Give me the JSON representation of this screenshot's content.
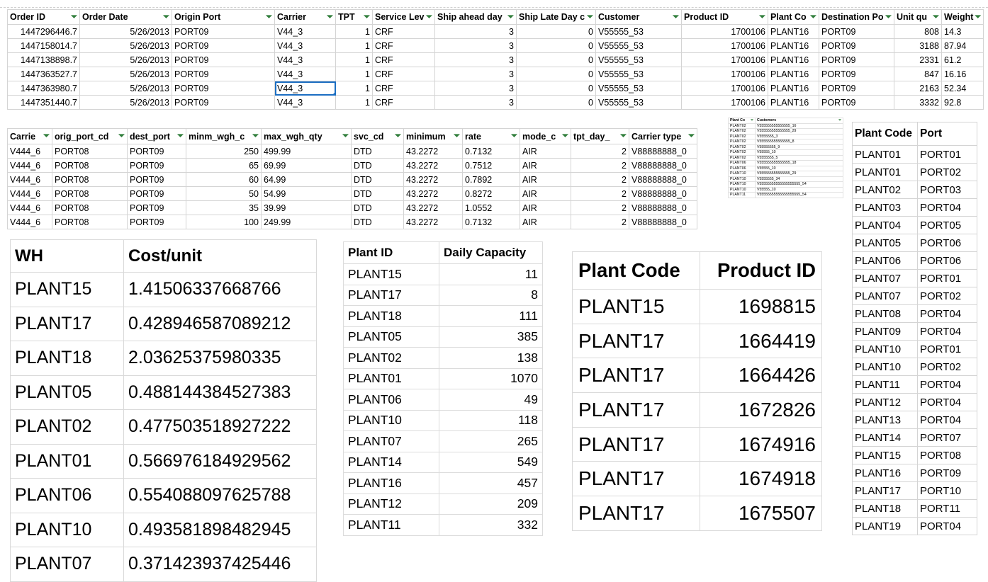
{
  "orders": {
    "columns": [
      "Order ID",
      "Order Date",
      "Origin Port",
      "Carrier",
      "TPT",
      "Service Lev",
      "Ship ahead day",
      "Ship Late Day c",
      "Customer",
      "Product ID",
      "Plant Co",
      "Destination Po",
      "Unit qu",
      "Weight"
    ],
    "rows": [
      [
        "1447296446.7",
        "5/26/2013",
        "PORT09",
        "V44_3",
        "1",
        "CRF",
        "3",
        "0",
        "V55555_53",
        "1700106",
        "PLANT16",
        "PORT09",
        "808",
        "14.3"
      ],
      [
        "1447158014.7",
        "5/26/2013",
        "PORT09",
        "V44_3",
        "1",
        "CRF",
        "3",
        "0",
        "V55555_53",
        "1700106",
        "PLANT16",
        "PORT09",
        "3188",
        "87.94"
      ],
      [
        "1447138898.7",
        "5/26/2013",
        "PORT09",
        "V44_3",
        "1",
        "CRF",
        "3",
        "0",
        "V55555_53",
        "1700106",
        "PLANT16",
        "PORT09",
        "2331",
        "61.2"
      ],
      [
        "1447363527.7",
        "5/26/2013",
        "PORT09",
        "V44_3",
        "1",
        "CRF",
        "3",
        "0",
        "V55555_53",
        "1700106",
        "PLANT16",
        "PORT09",
        "847",
        "16.16"
      ],
      [
        "1447363980.7",
        "5/26/2013",
        "PORT09",
        "V44_3",
        "1",
        "CRF",
        "3",
        "0",
        "V55555_53",
        "1700106",
        "PLANT16",
        "PORT09",
        "2163",
        "52.34"
      ],
      [
        "1447351440.7",
        "5/26/2013",
        "PORT09",
        "V44_3",
        "1",
        "CRF",
        "3",
        "0",
        "V55555_53",
        "1700106",
        "PLANT16",
        "PORT09",
        "3332",
        "92.8"
      ]
    ]
  },
  "freight": {
    "columns": [
      "Carrie",
      "orig_port_cd",
      "dest_port",
      "minm_wgh_c",
      "max_wgh_qty",
      "svc_cd",
      "minimum",
      "rate",
      "mode_c",
      "tpt_day_",
      "Carrier type"
    ],
    "rows": [
      [
        "V444_6",
        "PORT08",
        "PORT09",
        "250",
        "499.99",
        "DTD",
        "43.2272",
        "0.7132",
        "AIR",
        "2",
        "V88888888_0"
      ],
      [
        "V444_6",
        "PORT08",
        "PORT09",
        "65",
        "69.99",
        "DTD",
        "43.2272",
        "0.7512",
        "AIR",
        "2",
        "V88888888_0"
      ],
      [
        "V444_6",
        "PORT08",
        "PORT09",
        "60",
        "64.99",
        "DTD",
        "43.2272",
        "0.7892",
        "AIR",
        "2",
        "V88888888_0"
      ],
      [
        "V444_6",
        "PORT08",
        "PORT09",
        "50",
        "54.99",
        "DTD",
        "43.2272",
        "0.8272",
        "AIR",
        "2",
        "V88888888_0"
      ],
      [
        "V444_6",
        "PORT08",
        "PORT09",
        "35",
        "39.99",
        "DTD",
        "43.2272",
        "1.0552",
        "AIR",
        "2",
        "V88888888_0"
      ],
      [
        "V444_6",
        "PORT08",
        "PORT09",
        "100",
        "249.99",
        "DTD",
        "43.2272",
        "0.7132",
        "AIR",
        "2",
        "V88888888_0"
      ]
    ]
  },
  "customers": {
    "columns": [
      "Plant Co",
      "Customers"
    ],
    "rows": [
      [
        "PLANT02",
        "V555555555555555_16"
      ],
      [
        "PLANT02",
        "V555555555555555_29"
      ],
      [
        "PLANT02",
        "V5555555_3"
      ],
      [
        "PLANT02",
        "V555555555555555_8"
      ],
      [
        "PLANT02",
        "V55555555_9"
      ],
      [
        "PLANT02",
        "V55555_10"
      ],
      [
        "PLANT02",
        "V5555555_5"
      ],
      [
        "PLANT06",
        "V555555555555555_18"
      ],
      [
        "PLANT06",
        "V55555_10"
      ],
      [
        "PLANT10",
        "V555555555555555_29"
      ],
      [
        "PLANT10",
        "V5555555_34"
      ],
      [
        "PLANT10",
        "V55555555555555555555_54"
      ],
      [
        "PLANT10",
        "V55555_10"
      ],
      [
        "PLANT11",
        "V55555555555555555555_54"
      ]
    ]
  },
  "plant_ports": {
    "columns": [
      "Plant Code",
      "Port"
    ],
    "rows": [
      [
        "PLANT01",
        "PORT01"
      ],
      [
        "PLANT01",
        "PORT02"
      ],
      [
        "PLANT02",
        "PORT03"
      ],
      [
        "PLANT03",
        "PORT04"
      ],
      [
        "PLANT04",
        "PORT05"
      ],
      [
        "PLANT05",
        "PORT06"
      ],
      [
        "PLANT06",
        "PORT06"
      ],
      [
        "PLANT07",
        "PORT01"
      ],
      [
        "PLANT07",
        "PORT02"
      ],
      [
        "PLANT08",
        "PORT04"
      ],
      [
        "PLANT09",
        "PORT04"
      ],
      [
        "PLANT10",
        "PORT01"
      ],
      [
        "PLANT10",
        "PORT02"
      ],
      [
        "PLANT11",
        "PORT04"
      ],
      [
        "PLANT12",
        "PORT04"
      ],
      [
        "PLANT13",
        "PORT04"
      ],
      [
        "PLANT14",
        "PORT07"
      ],
      [
        "PLANT15",
        "PORT08"
      ],
      [
        "PLANT16",
        "PORT09"
      ],
      [
        "PLANT17",
        "PORT10"
      ],
      [
        "PLANT18",
        "PORT11"
      ],
      [
        "PLANT19",
        "PORT04"
      ]
    ]
  },
  "wh_costs": {
    "columns": [
      "WH",
      "Cost/unit"
    ],
    "rows": [
      [
        "PLANT15",
        "1.41506337668766"
      ],
      [
        "PLANT17",
        "0.428946587089212"
      ],
      [
        "PLANT18",
        "2.03625375980335"
      ],
      [
        "PLANT05",
        "0.488144384527383"
      ],
      [
        "PLANT02",
        "0.477503518927222"
      ],
      [
        "PLANT01",
        "0.566976184929562"
      ],
      [
        "PLANT06",
        "0.554088097625788"
      ],
      [
        "PLANT10",
        "0.493581898482945"
      ],
      [
        "PLANT07",
        "0.371423937425446"
      ]
    ]
  },
  "capacities": {
    "columns": [
      "Plant ID",
      "Daily Capacity"
    ],
    "rows": [
      [
        "PLANT15",
        "11"
      ],
      [
        "PLANT17",
        "8"
      ],
      [
        "PLANT18",
        "111"
      ],
      [
        "PLANT05",
        "385"
      ],
      [
        "PLANT02",
        "138"
      ],
      [
        "PLANT01",
        "1070"
      ],
      [
        "PLANT06",
        "49"
      ],
      [
        "PLANT10",
        "118"
      ],
      [
        "PLANT07",
        "265"
      ],
      [
        "PLANT14",
        "549"
      ],
      [
        "PLANT16",
        "457"
      ],
      [
        "PLANT12",
        "209"
      ],
      [
        "PLANT11",
        "332"
      ]
    ]
  },
  "products": {
    "columns": [
      "Plant Code",
      "Product ID"
    ],
    "rows": [
      [
        "PLANT15",
        "1698815"
      ],
      [
        "PLANT17",
        "1664419"
      ],
      [
        "PLANT17",
        "1664426"
      ],
      [
        "PLANT17",
        "1672826"
      ],
      [
        "PLANT17",
        "1674916"
      ],
      [
        "PLANT17",
        "1674918"
      ],
      [
        "PLANT17",
        "1675507"
      ]
    ]
  },
  "icons": {
    "filter": "filter-dropdown-icon"
  },
  "colors": {
    "filter_icon": "#2f7d3a",
    "selection": "#1b6ec2"
  }
}
